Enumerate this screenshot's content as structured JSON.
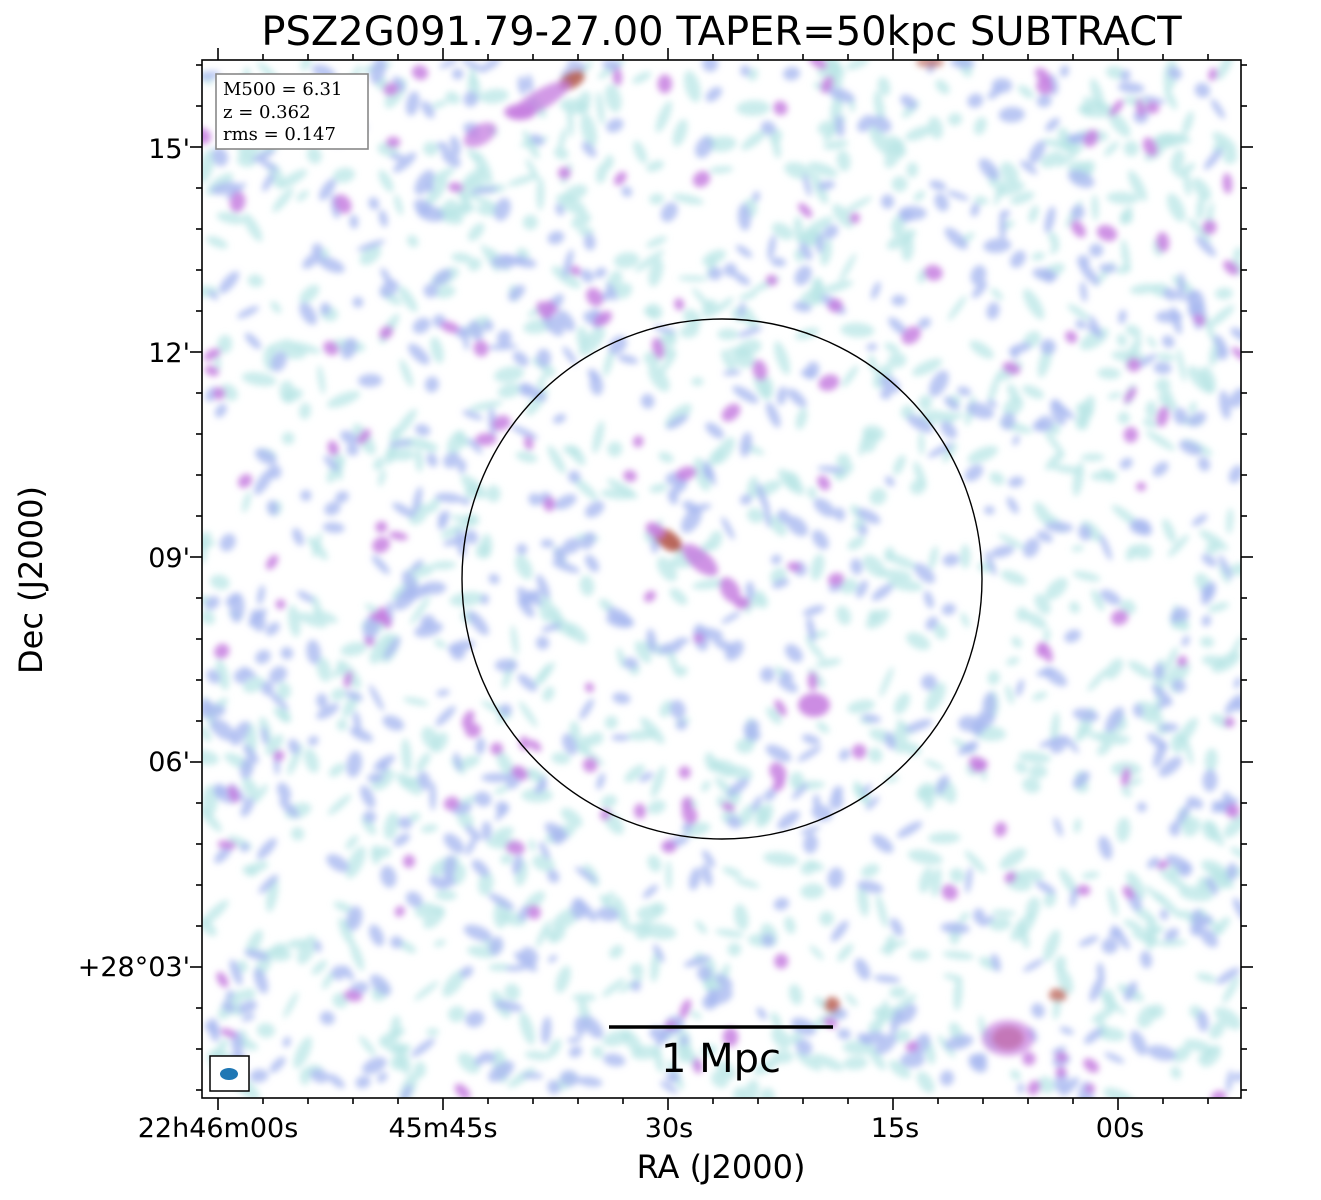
{
  "title": "PSZ2G091.79-27.00 TAPER=50kpc SUBTRACT",
  "axes": {
    "xlabel": "RA (J2000)",
    "ylabel": "Dec (J2000)",
    "x_ticks": [
      "22h46m00s",
      "45m45s",
      "30s",
      "15s",
      "00s"
    ],
    "y_ticks": [
      "15'",
      "12'",
      "09'",
      "06'",
      "+28°03'"
    ]
  },
  "info_box": {
    "lines": [
      "M500 = 6.31",
      "z = 0.362",
      "rms = 0.147"
    ]
  },
  "scale_bar": {
    "label": "1 Mpc"
  },
  "colors": {
    "faint": "#b8e6e6",
    "low": "#a9b9f0",
    "mid": "#c77fe0",
    "high": "#b5574a",
    "circle": "#000000",
    "beam": "#1f77b4"
  },
  "image": {
    "description_icon": "radio-map-noise",
    "features": [
      "central-bright-source",
      "r500-circle",
      "beam-ellipse"
    ]
  }
}
